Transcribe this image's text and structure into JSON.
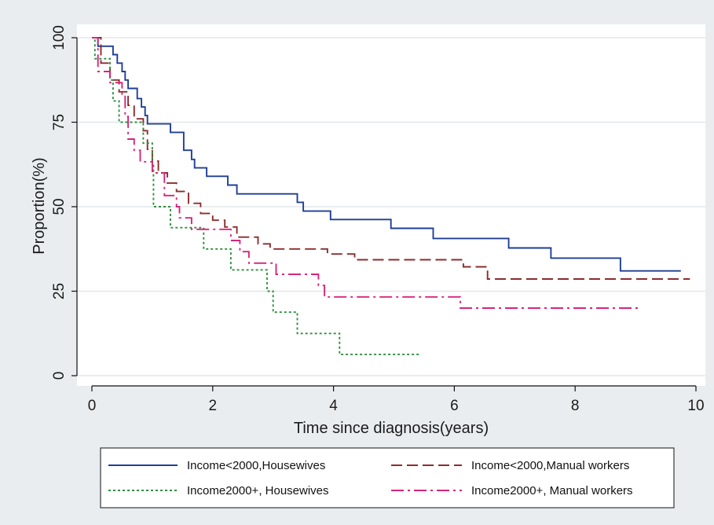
{
  "chart_data": {
    "type": "line",
    "subtype": "step (Kaplan-Meier survival curves)",
    "title": "",
    "xlabel": "Time since diagnosis(years)",
    "ylabel": "Proportion(%)",
    "xlim": [
      0,
      10
    ],
    "ylim": [
      0,
      100
    ],
    "xticks": [
      0,
      2,
      4,
      6,
      8,
      10
    ],
    "yticks": [
      0,
      25,
      50,
      75,
      100
    ],
    "grid": "horizontal",
    "legend_position": "bottom",
    "colors": {
      "background": "#e9edf0",
      "plot_area": "#ffffff",
      "grid": "#e3e7ea"
    },
    "series": [
      {
        "name": "Income<2000,Housewives",
        "color": "#1f3f95",
        "dash": "solid",
        "points": [
          [
            0,
            100
          ],
          [
            0.1,
            97.5
          ],
          [
            0.35,
            95
          ],
          [
            0.42,
            92.5
          ],
          [
            0.5,
            90
          ],
          [
            0.55,
            87.5
          ],
          [
            0.6,
            85
          ],
          [
            0.75,
            82
          ],
          [
            0.82,
            79.5
          ],
          [
            0.88,
            77
          ],
          [
            0.92,
            74.5
          ],
          [
            1.3,
            72
          ],
          [
            1.52,
            66.7
          ],
          [
            1.65,
            64
          ],
          [
            1.7,
            61.5
          ],
          [
            1.9,
            59
          ],
          [
            2.25,
            56.4
          ],
          [
            2.4,
            53.8
          ],
          [
            3.4,
            51.3
          ],
          [
            3.5,
            48.7
          ],
          [
            3.95,
            46.2
          ],
          [
            4.95,
            43.6
          ],
          [
            5.65,
            40.6
          ],
          [
            6.9,
            37.8
          ],
          [
            7.6,
            34.8
          ],
          [
            8.75,
            31
          ],
          [
            9.75,
            31
          ]
        ]
      },
      {
        "name": "Income<2000,Manual workers",
        "color": "#8b2d2d",
        "dash": "long-dash",
        "points": [
          [
            0,
            100
          ],
          [
            0.15,
            92.5
          ],
          [
            0.3,
            87.5
          ],
          [
            0.45,
            84
          ],
          [
            0.6,
            80
          ],
          [
            0.7,
            76
          ],
          [
            0.85,
            72.5
          ],
          [
            0.92,
            67
          ],
          [
            1.0,
            63.5
          ],
          [
            1.1,
            60
          ],
          [
            1.25,
            57
          ],
          [
            1.4,
            54.5
          ],
          [
            1.6,
            51
          ],
          [
            1.8,
            48
          ],
          [
            2.0,
            46
          ],
          [
            2.2,
            44
          ],
          [
            2.4,
            41
          ],
          [
            2.75,
            39
          ],
          [
            2.95,
            37.5
          ],
          [
            3.9,
            36
          ],
          [
            4.35,
            34.3
          ],
          [
            6.15,
            32.2
          ],
          [
            6.55,
            28.6
          ],
          [
            9.9,
            28.6
          ]
        ]
      },
      {
        "name": "Income2000+, Housewives",
        "color": "#2f8f3f",
        "dash": "dotted",
        "points": [
          [
            0,
            100
          ],
          [
            0.05,
            93.8
          ],
          [
            0.3,
            87.5
          ],
          [
            0.35,
            81.3
          ],
          [
            0.45,
            75
          ],
          [
            0.85,
            68.8
          ],
          [
            1.0,
            62.5
          ],
          [
            1.02,
            50
          ],
          [
            1.3,
            43.8
          ],
          [
            1.85,
            37.5
          ],
          [
            2.3,
            31.3
          ],
          [
            2.9,
            25
          ],
          [
            3.0,
            18.8
          ],
          [
            3.4,
            12.5
          ],
          [
            4.1,
            6.3
          ],
          [
            5.45,
            6.3
          ]
        ]
      },
      {
        "name": "Income2000+, Manual workers",
        "color": "#d8257a",
        "dash": "dash-dot",
        "points": [
          [
            0,
            100
          ],
          [
            0.1,
            90
          ],
          [
            0.3,
            86.7
          ],
          [
            0.5,
            83.3
          ],
          [
            0.55,
            76.7
          ],
          [
            0.6,
            70
          ],
          [
            0.7,
            66.7
          ],
          [
            0.8,
            63.3
          ],
          [
            1.0,
            60
          ],
          [
            1.2,
            53.3
          ],
          [
            1.4,
            50
          ],
          [
            1.45,
            46.7
          ],
          [
            1.65,
            43.3
          ],
          [
            2.3,
            40
          ],
          [
            2.45,
            36.7
          ],
          [
            2.6,
            33.3
          ],
          [
            3.05,
            30
          ],
          [
            3.75,
            26.7
          ],
          [
            3.85,
            23.3
          ],
          [
            6.1,
            20
          ],
          [
            9.05,
            20
          ]
        ]
      }
    ]
  }
}
